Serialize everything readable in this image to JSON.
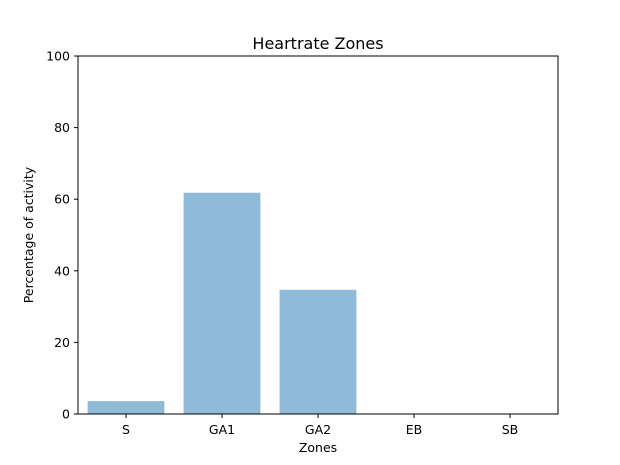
{
  "chart_data": {
    "type": "bar",
    "title": "Heartrate Zones",
    "xlabel": "Zones",
    "ylabel": "Percentage of activity",
    "categories": [
      "S",
      "GA1",
      "GA2",
      "EB",
      "SB"
    ],
    "values": [
      3.6,
      61.8,
      34.7,
      0,
      0
    ],
    "ylim": [
      0,
      100
    ],
    "yticks": [
      "0",
      "20",
      "40",
      "60",
      "80",
      "100"
    ],
    "grid": false,
    "bar_color": "#8fbad8"
  }
}
